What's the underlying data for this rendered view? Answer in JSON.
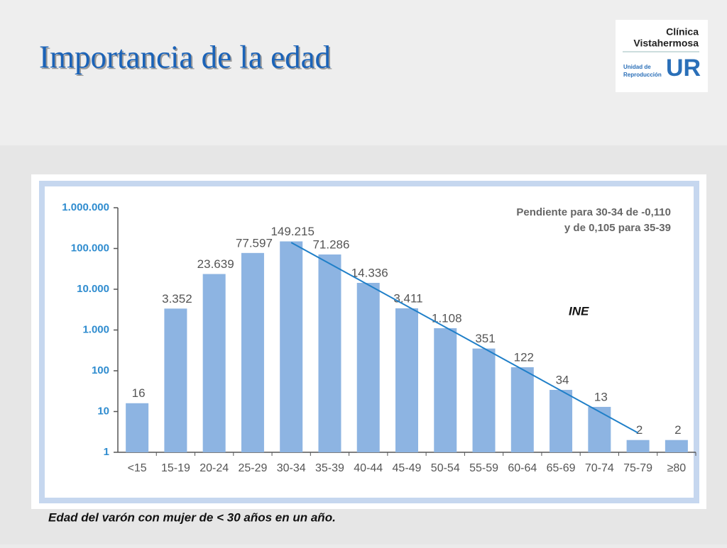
{
  "slide_title": "Importancia de la edad",
  "logo": {
    "line1": "Clínica",
    "line2": "Vistahermosa",
    "sub1": "Unidad de",
    "sub2": "Reproducción",
    "mark": "UR"
  },
  "caption": "Edad del varón con mujer de < 30 años en un año.",
  "chart_data": {
    "type": "bar",
    "categories": [
      "<15",
      "15-19",
      "20-24",
      "25-29",
      "30-34",
      "35-39",
      "40-44",
      "45-49",
      "50-54",
      "55-59",
      "60-64",
      "65-69",
      "70-74",
      "75-79",
      "≥80"
    ],
    "values": [
      16,
      3352,
      23639,
      77597,
      149215,
      71286,
      14336,
      3411,
      1108,
      351,
      122,
      34,
      13,
      2,
      2
    ],
    "value_labels": [
      "16",
      "3.352",
      "23.639",
      "77.597",
      "149.215",
      "71.286",
      "14.336",
      "3.411",
      "1.108",
      "351",
      "122",
      "34",
      "13",
      "2",
      "2"
    ],
    "color": "#8db4e2",
    "log_scale": true,
    "ylim": [
      1,
      1000000
    ],
    "yticks": [
      1,
      10,
      100,
      {
        "value": 1000,
        "label": "1.000"
      },
      {
        "value": 10000,
        "label": "10.000"
      },
      {
        "value": 100000,
        "label": "100.000"
      },
      {
        "value": 1000000,
        "label": "1.000.000"
      }
    ],
    "annotations": [
      "Pendiente para 30-34 de -0,110",
      "y de 0,105 para 35-39"
    ],
    "source": "INE",
    "trend_line": {
      "x": [
        "30-34",
        "75-79"
      ],
      "values": [
        140000,
        3
      ],
      "color": "#1f7fc8"
    }
  }
}
